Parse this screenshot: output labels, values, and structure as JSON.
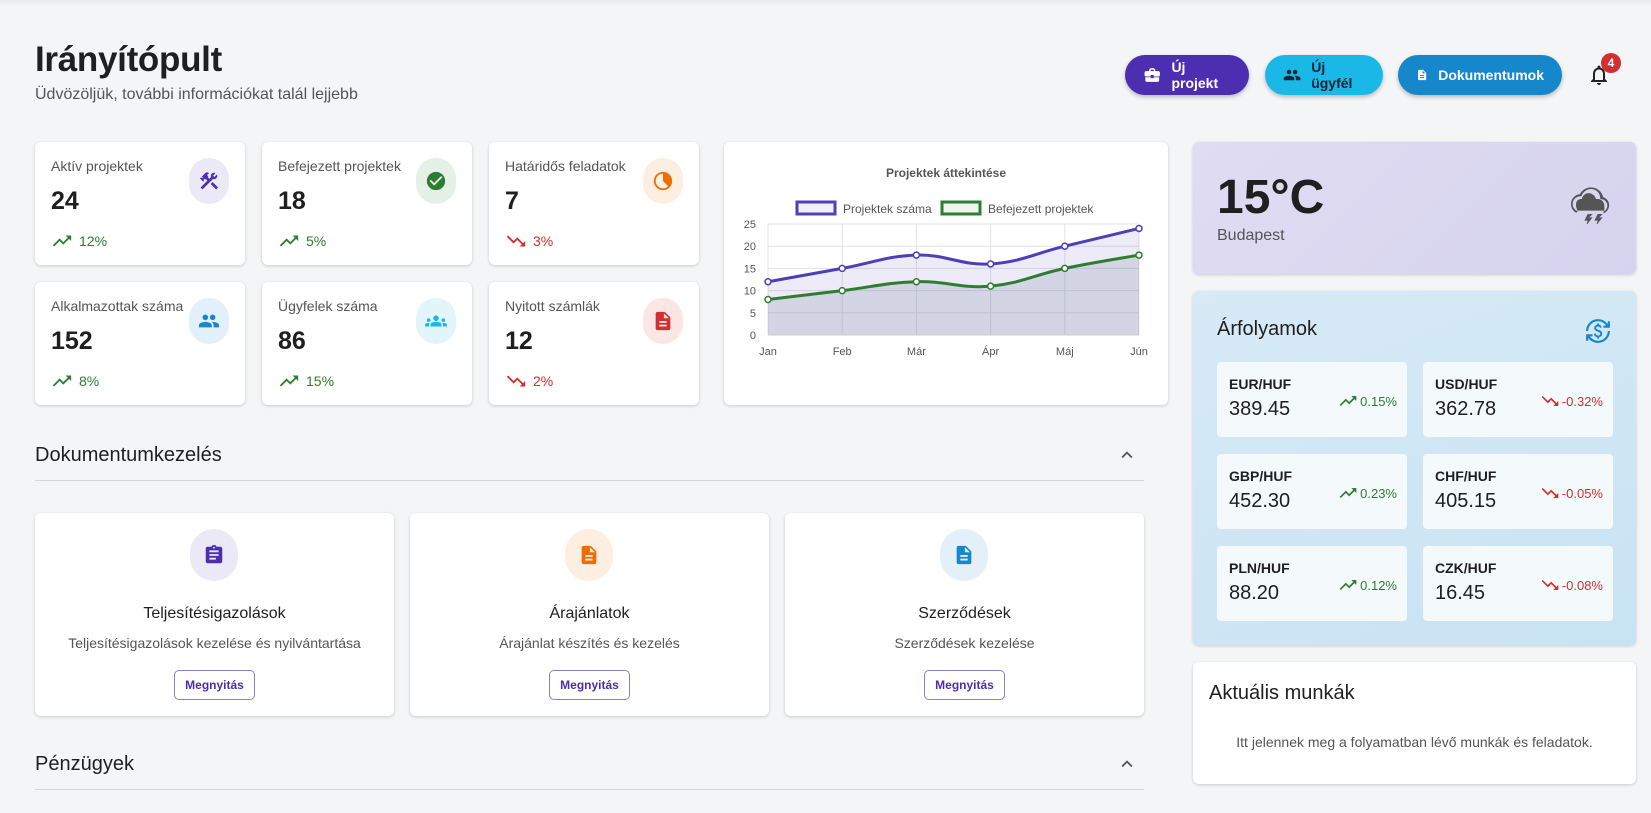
{
  "header": {
    "title": "Irányítópult",
    "subtitle": "Üdvözöljük, további információkat talál lejjebb",
    "buttons": {
      "new_project": "Új projekt",
      "new_client": "Új ügyfél",
      "documents": "Dokumentumok"
    },
    "notification_count": "4"
  },
  "stats": [
    {
      "label": "Aktív projektek",
      "value": "24",
      "change": "12%",
      "direction": "up",
      "icon": "tools-icon",
      "color": "#4c2fb0"
    },
    {
      "label": "Befejezett projektek",
      "value": "18",
      "change": "5%",
      "direction": "up",
      "icon": "check-circle-icon",
      "color": "#2e7d32"
    },
    {
      "label": "Határidős feladatok",
      "value": "7",
      "change": "3%",
      "direction": "down",
      "icon": "timer-icon",
      "color": "#ef6c00"
    },
    {
      "label": "Alkalmazottak száma",
      "value": "152",
      "change": "8%",
      "direction": "up",
      "icon": "people-icon",
      "color": "#1787cc"
    },
    {
      "label": "Ügyfelek száma",
      "value": "86",
      "change": "15%",
      "direction": "up",
      "icon": "group-icon",
      "color": "#1ab8e6"
    },
    {
      "label": "Nyitott számlák",
      "value": "12",
      "change": "2%",
      "direction": "down",
      "icon": "invoice-icon",
      "color": "#d32f2f"
    }
  ],
  "chart_data": {
    "type": "line",
    "title": "Projektek áttekintése",
    "categories": [
      "Jan",
      "Feb",
      "Már",
      "Ápr",
      "Máj",
      "Jún"
    ],
    "series": [
      {
        "name": "Projektek száma",
        "values": [
          12,
          15,
          18,
          16,
          20,
          24
        ],
        "color": "#4c3fb8"
      },
      {
        "name": "Befejezett projektek",
        "values": [
          8,
          10,
          12,
          11,
          15,
          18
        ],
        "color": "#2e7d32"
      }
    ],
    "ylim": [
      0,
      25
    ],
    "yticks": [
      0,
      5,
      10,
      15,
      20,
      25
    ],
    "grid": true,
    "legend": "top"
  },
  "sections": {
    "documents": "Dokumentumkezelés",
    "finance": "Pénzügyek"
  },
  "doc_cards": [
    {
      "title": "Teljesítésigazolások",
      "desc": "Teljesítésigazolások kezelése és nyilvántartása",
      "button": "Megnyitás",
      "icon": "clipboard-icon",
      "color": "#4c2fb0"
    },
    {
      "title": "Árajánlatok",
      "desc": "Árajánlat készítés és kezelés",
      "button": "Megnyitás",
      "icon": "document-icon",
      "color": "#ef6c00"
    },
    {
      "title": "Szerződések",
      "desc": "Szerződések kezelése",
      "button": "Megnyitás",
      "icon": "contract-icon",
      "color": "#1787cc"
    }
  ],
  "weather": {
    "temp": "15°C",
    "city": "Budapest",
    "icon": "thunderstorm-icon"
  },
  "rates": {
    "title": "Árfolyamok",
    "items": [
      {
        "pair": "EUR/HUF",
        "value": "389.45",
        "change": "0.15%",
        "direction": "up"
      },
      {
        "pair": "USD/HUF",
        "value": "362.78",
        "change": "-0.32%",
        "direction": "down"
      },
      {
        "pair": "GBP/HUF",
        "value": "452.30",
        "change": "0.23%",
        "direction": "up"
      },
      {
        "pair": "CHF/HUF",
        "value": "405.15",
        "change": "-0.05%",
        "direction": "down"
      },
      {
        "pair": "PLN/HUF",
        "value": "88.20",
        "change": "0.12%",
        "direction": "up"
      },
      {
        "pair": "CZK/HUF",
        "value": "16.45",
        "change": "-0.08%",
        "direction": "down"
      }
    ]
  },
  "jobs": {
    "title": "Aktuális munkák",
    "empty": "Itt jelennek meg a folyamatban lévő munkák és feladatok."
  }
}
